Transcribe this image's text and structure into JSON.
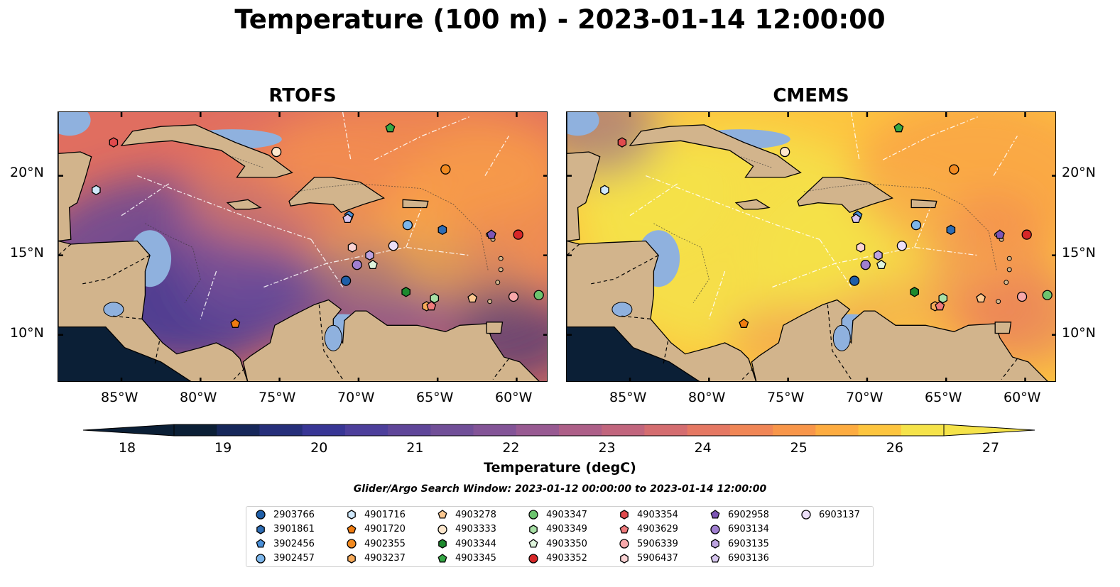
{
  "title": "Temperature (100 m) - 2023-01-14 12:00:00",
  "panels": [
    {
      "title": "RTOFS",
      "palette": "warm"
    },
    {
      "title": "CMEMS",
      "palette": "hot"
    }
  ],
  "map_extent": {
    "lon": [
      -89,
      -58
    ],
    "lat": [
      7,
      24
    ]
  },
  "lon_ticks": [
    "85°W",
    "80°W",
    "75°W",
    "70°W",
    "65°W",
    "60°W"
  ],
  "lat_ticks": [
    "20°N",
    "15°N",
    "10°N"
  ],
  "colorbar": {
    "label": "Temperature (degC)",
    "min": 18,
    "max": 27,
    "ticks": [
      "18",
      "19",
      "20",
      "21",
      "22",
      "23",
      "24",
      "25",
      "26",
      "27"
    ],
    "colors": [
      "#0b1f36",
      "#16275a",
      "#262f7a",
      "#383695",
      "#4d3f9b",
      "#5f4699",
      "#714f98",
      "#835497",
      "#985a92",
      "#ad5f88",
      "#c1657d",
      "#d46d70",
      "#e57863",
      "#f08656",
      "#f8964a",
      "#fdac41",
      "#fdc53f",
      "#f5e34a"
    ]
  },
  "search_window": "Glider/Argo Search Window: 2023-01-12 00:00:00 to 2023-01-14 12:00:00",
  "legend": [
    {
      "id": "2903766",
      "color": "#1f5fa8",
      "marker": "circle",
      "lon": -70.8,
      "lat": 13.4
    },
    {
      "id": "3901861",
      "color": "#2e6db5",
      "marker": "hexagon",
      "lon": -64.7,
      "lat": 16.6
    },
    {
      "id": "3902456",
      "color": "#4a90d9",
      "marker": "pentagon",
      "lon": -70.6,
      "lat": 17.5
    },
    {
      "id": "3902457",
      "color": "#7db6ea",
      "marker": "circle",
      "lon": -66.9,
      "lat": 16.9
    },
    {
      "id": "4901716",
      "color": "#cfe8fb",
      "marker": "hexagon",
      "lon": -86.6,
      "lat": 19.1
    },
    {
      "id": "4901720",
      "color": "#f07c10",
      "marker": "pentagon",
      "lon": -77.8,
      "lat": 10.7
    },
    {
      "id": "4902355",
      "color": "#f28a20",
      "marker": "circle",
      "lon": -64.5,
      "lat": 20.4
    },
    {
      "id": "4903237",
      "color": "#f8ab5a",
      "marker": "hexagon",
      "lon": -65.7,
      "lat": 11.8
    },
    {
      "id": "4903278",
      "color": "#fcc890",
      "marker": "pentagon",
      "lon": -62.8,
      "lat": 12.3
    },
    {
      "id": "4903333",
      "color": "#fde6cc",
      "marker": "circle",
      "lon": -75.2,
      "lat": 21.5
    },
    {
      "id": "4903344",
      "color": "#1e8a2e",
      "marker": "hexagon",
      "lon": -67.0,
      "lat": 12.7
    },
    {
      "id": "4903345",
      "color": "#35a845",
      "marker": "pentagon",
      "lon": -68.0,
      "lat": 23.0
    },
    {
      "id": "4903347",
      "color": "#6cc46e",
      "marker": "circle",
      "lon": -58.6,
      "lat": 12.5
    },
    {
      "id": "4903349",
      "color": "#a8e0a6",
      "marker": "hexagon",
      "lon": -65.2,
      "lat": 12.3
    },
    {
      "id": "4903350",
      "color": "#dff5dc",
      "marker": "pentagon",
      "lon": -69.1,
      "lat": 14.4
    },
    {
      "id": "4903352",
      "color": "#d62728",
      "marker": "circle",
      "lon": -59.9,
      "lat": 16.3
    },
    {
      "id": "4903354",
      "color": "#e04a4d",
      "marker": "hexagon",
      "lon": -85.5,
      "lat": 22.1
    },
    {
      "id": "4903629",
      "color": "#ef7a7c",
      "marker": "pentagon",
      "lon": -65.4,
      "lat": 11.8
    },
    {
      "id": "5906339",
      "color": "#f7a8aa",
      "marker": "circle",
      "lon": -60.2,
      "lat": 12.4
    },
    {
      "id": "5906437",
      "color": "#fbd3d4",
      "marker": "hexagon",
      "lon": -70.4,
      "lat": 15.5
    },
    {
      "id": "6902958",
      "color": "#7d55b5",
      "marker": "pentagon",
      "lon": -61.6,
      "lat": 16.3
    },
    {
      "id": "6903134",
      "color": "#a07fd0",
      "marker": "circle",
      "lon": -70.1,
      "lat": 14.4
    },
    {
      "id": "6903135",
      "color": "#bda3e0",
      "marker": "hexagon",
      "lon": -69.3,
      "lat": 15.0
    },
    {
      "id": "6903136",
      "color": "#d7c6ef",
      "marker": "pentagon",
      "lon": -70.7,
      "lat": 17.3
    },
    {
      "id": "6903137",
      "color": "#ecdff8",
      "marker": "circle",
      "lon": -67.8,
      "lat": 15.6
    }
  ]
}
